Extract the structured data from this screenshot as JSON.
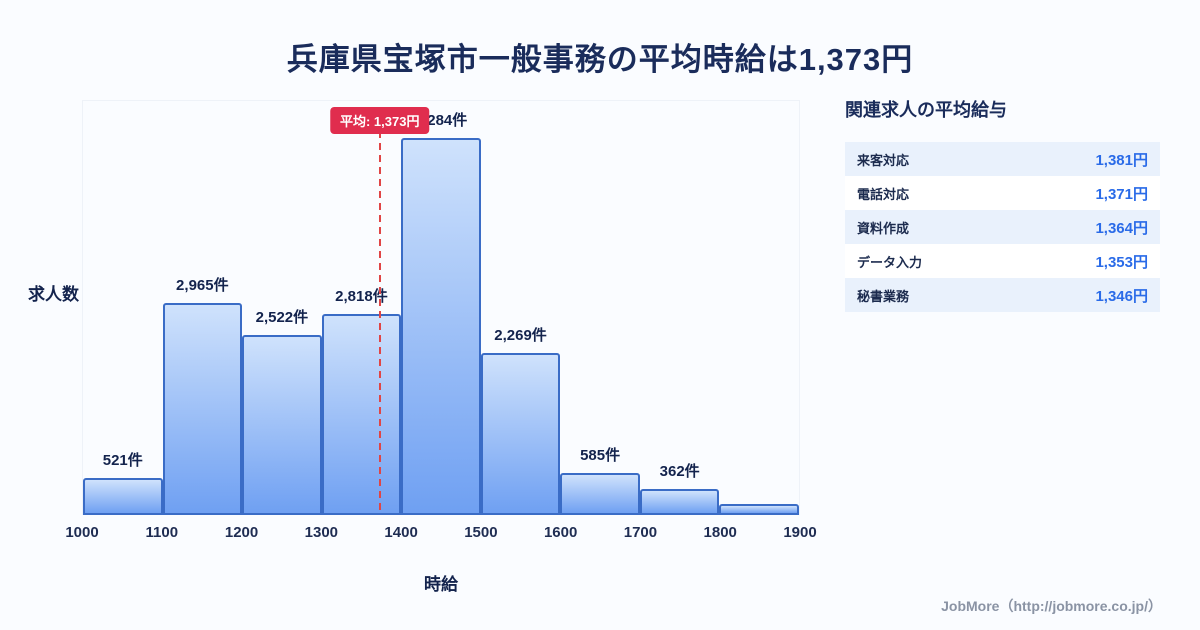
{
  "page": {
    "title": "兵庫県宝塚市一般事務の平均時給は1,373円",
    "footer": "JobMore（http://jobmore.co.jp/）"
  },
  "chart_data": {
    "type": "bar",
    "title": "",
    "xlabel": "時給",
    "ylabel": "求人数",
    "x_ticks": [
      "1000",
      "1100",
      "1200",
      "1300",
      "1400",
      "1500",
      "1600",
      "1700",
      "1800",
      "1900"
    ],
    "ylim": [
      0,
      5800
    ],
    "grid": false,
    "legend": "none",
    "bins": [
      {
        "range": [
          1000,
          1100
        ],
        "value": 521,
        "label": "521件"
      },
      {
        "range": [
          1100,
          1200
        ],
        "value": 2965,
        "label": "2,965件"
      },
      {
        "range": [
          1200,
          1300
        ],
        "value": 2522,
        "label": "2,522件"
      },
      {
        "range": [
          1300,
          1400
        ],
        "value": 2818,
        "label": "2,818件"
      },
      {
        "range": [
          1400,
          1500
        ],
        "value": 5284,
        "label": "5,284件"
      },
      {
        "range": [
          1500,
          1600
        ],
        "value": 2269,
        "label": "2,269件"
      },
      {
        "range": [
          1600,
          1700
        ],
        "value": 585,
        "label": "585件"
      },
      {
        "range": [
          1700,
          1800
        ],
        "value": 362,
        "label": "362件"
      },
      {
        "range": [
          1800,
          1900
        ],
        "value": 150,
        "label": ""
      }
    ],
    "average_line": {
      "value": 1373,
      "label": "平均: 1,373円"
    },
    "axis_range": [
      1000,
      1900
    ],
    "colors": {
      "bar_fill_top": "#cfe2fc",
      "bar_fill_bottom": "#6fa0f2",
      "bar_border": "#3a6cc6",
      "average_badge": "#e02d4e",
      "average_line": "#e04545",
      "title": "#1a2c5b"
    }
  },
  "side_panel": {
    "title": "関連求人の平均給与",
    "rows": [
      {
        "label": "来客対応",
        "value": "1,381円"
      },
      {
        "label": "電話対応",
        "value": "1,371円"
      },
      {
        "label": "資料作成",
        "value": "1,364円"
      },
      {
        "label": "データ入力",
        "value": "1,353円"
      },
      {
        "label": "秘書業務",
        "value": "1,346円"
      }
    ]
  }
}
